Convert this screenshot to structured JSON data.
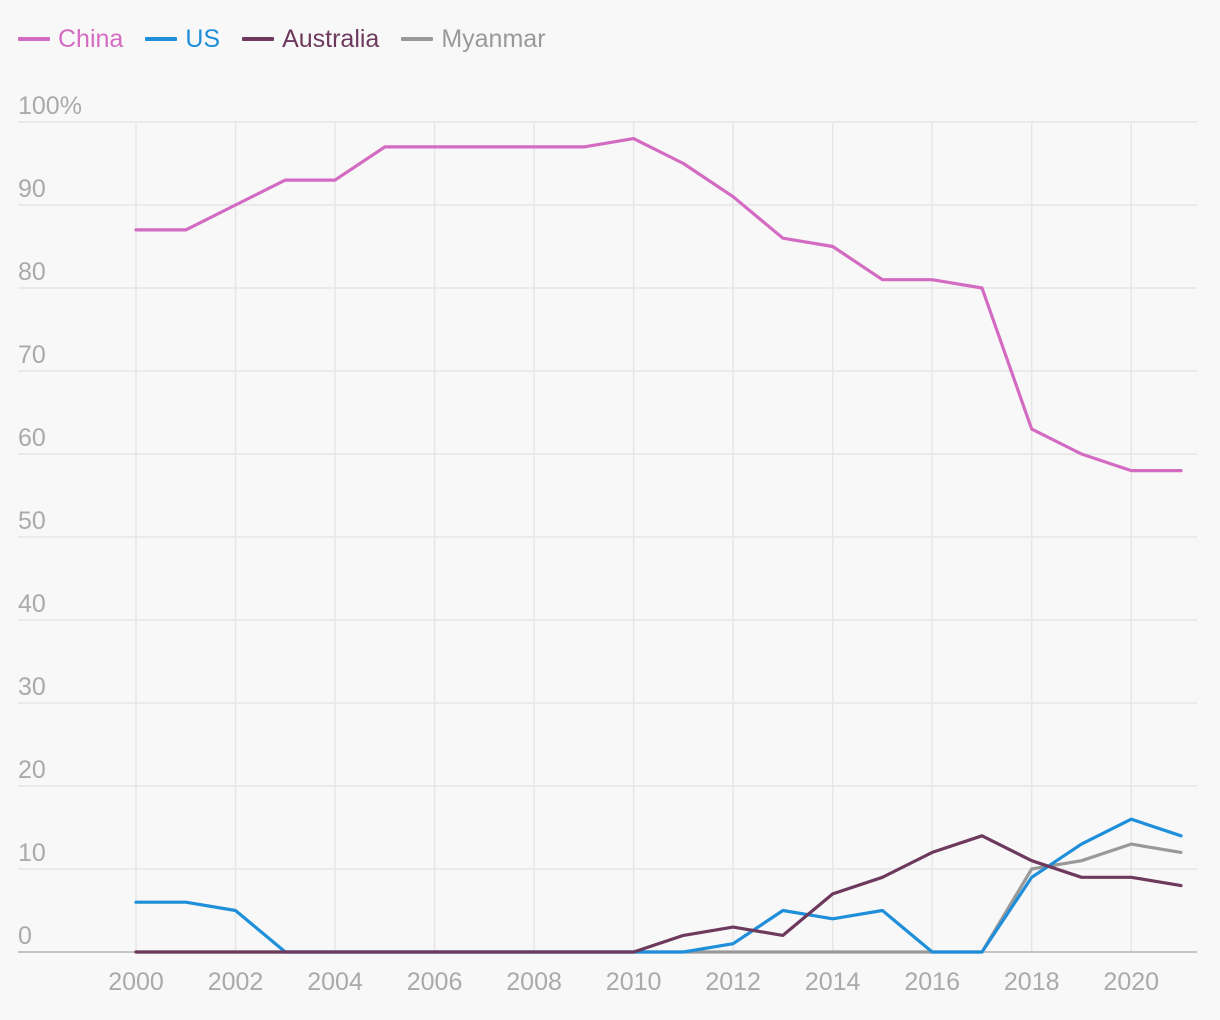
{
  "chart_data": {
    "type": "line",
    "title": "",
    "xlabel": "",
    "ylabel": "",
    "x": [
      2000,
      2001,
      2002,
      2003,
      2004,
      2005,
      2006,
      2007,
      2008,
      2009,
      2010,
      2011,
      2012,
      2013,
      2014,
      2015,
      2016,
      2017,
      2018,
      2019,
      2020,
      2021
    ],
    "x_ticks": [
      "2000",
      "2002",
      "2004",
      "2006",
      "2008",
      "2010",
      "2012",
      "2014",
      "2016",
      "2018",
      "2020"
    ],
    "y_ticks": [
      "100%",
      "90",
      "80",
      "70",
      "60",
      "50",
      "40",
      "30",
      "20",
      "10",
      "0"
    ],
    "ylim": [
      0,
      100
    ],
    "grid": true,
    "legend_position": "top-left",
    "series": [
      {
        "name": "China",
        "color": "#d36bc2",
        "values": [
          87,
          87,
          90,
          93,
          93,
          97,
          97,
          97,
          97,
          97,
          98,
          95,
          91,
          86,
          85,
          81,
          81,
          80,
          63,
          60,
          58,
          58
        ]
      },
      {
        "name": "US",
        "color": "#1f8fd9",
        "values": [
          6,
          6,
          5,
          0,
          0,
          0,
          0,
          0,
          0,
          0,
          0,
          0,
          1,
          5,
          4,
          5,
          0,
          0,
          9,
          13,
          16,
          14
        ]
      },
      {
        "name": "Australia",
        "color": "#6d3a5d",
        "values": [
          0,
          0,
          0,
          0,
          0,
          0,
          0,
          0,
          0,
          0,
          0,
          2,
          3,
          2,
          7,
          9,
          12,
          14,
          11,
          9,
          9,
          8
        ]
      },
      {
        "name": "Myanmar",
        "color": "#999999",
        "values": [
          0,
          0,
          0,
          0,
          0,
          0,
          0,
          0,
          0,
          0,
          0,
          0,
          0,
          0,
          0,
          0,
          0,
          0,
          10,
          11,
          13,
          12
        ]
      }
    ]
  },
  "style": {
    "grid_color": "#e6e6e6",
    "axis_color": "#c4c4c4",
    "tick_text_color": "#aaaaaa"
  }
}
